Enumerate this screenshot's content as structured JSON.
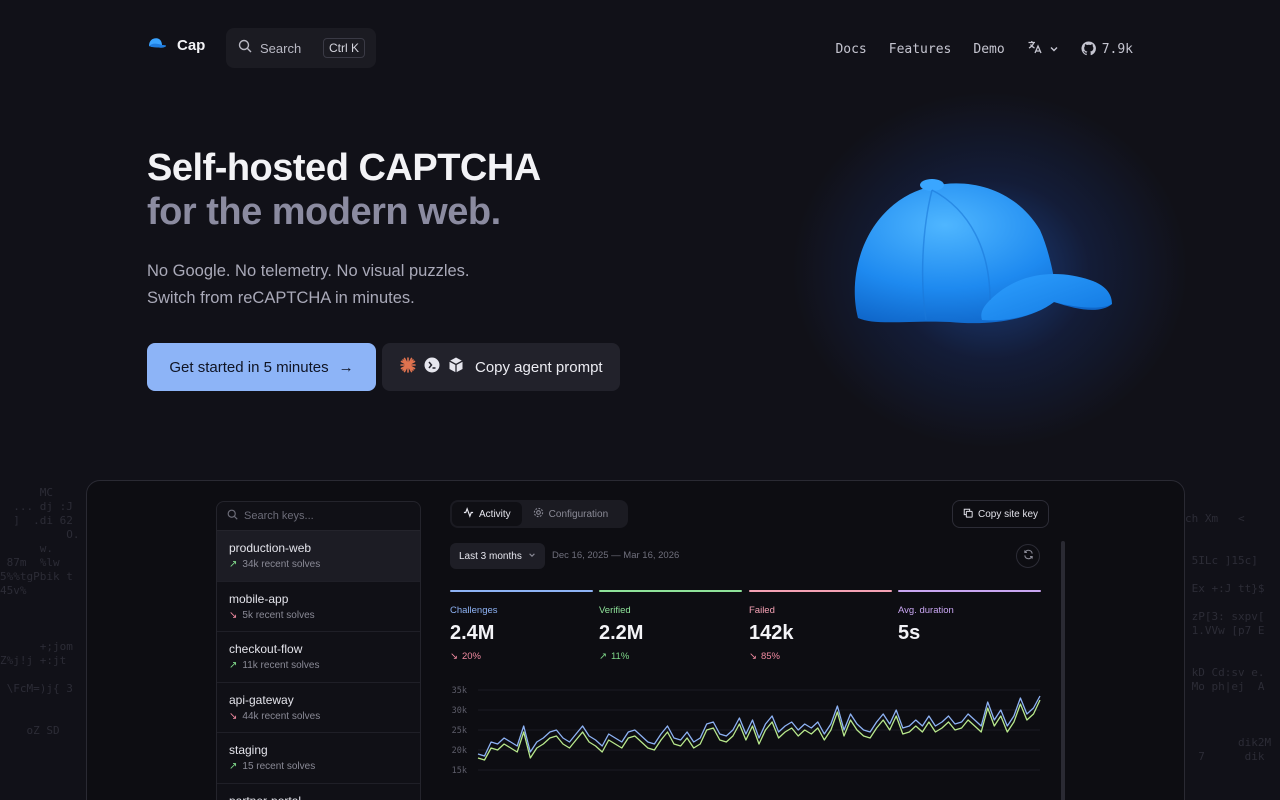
{
  "nav": {
    "brand": "Cap",
    "search_label": "Search",
    "search_shortcut": "Ctrl K",
    "links": [
      "Docs",
      "Features",
      "Demo"
    ],
    "github_stars": "7.9k"
  },
  "hero": {
    "title_line1": "Self-hosted CAPTCHA",
    "title_line2": "for the modern web.",
    "subtitle_line1": "No Google. No telemetry. No visual puzzles.",
    "subtitle_line2": "Switch from reCAPTCHA in minutes.",
    "cta_primary": "Get started in 5 minutes",
    "cta_primary_arrow": "→",
    "cta_secondary": "Copy agent prompt"
  },
  "dashboard": {
    "keys_search_placeholder": "Search keys...",
    "keys": [
      {
        "name": "production-web",
        "sub": "34k recent solves",
        "trend": "up"
      },
      {
        "name": "mobile-app",
        "sub": "5k recent solves",
        "trend": "down"
      },
      {
        "name": "checkout-flow",
        "sub": "11k recent solves",
        "trend": "up"
      },
      {
        "name": "api-gateway",
        "sub": "44k recent solves",
        "trend": "down"
      },
      {
        "name": "staging",
        "sub": "15 recent solves",
        "trend": "up"
      },
      {
        "name": "partner-portal",
        "sub": "",
        "trend": "up"
      }
    ],
    "tabs": [
      "Activity",
      "Configuration"
    ],
    "copy_site_key": "Copy site key",
    "range_label": "Last 3 months",
    "range_dates": "Dec 16, 2025 — Mar 16, 2026",
    "stats": [
      {
        "label": "Challenges",
        "value": "2.4M",
        "change": "20%",
        "dir": "down",
        "color": "#8eb3f5"
      },
      {
        "label": "Verified",
        "value": "2.2M",
        "change": "11%",
        "dir": "up",
        "color": "#8fe39a"
      },
      {
        "label": "Failed",
        "value": "142k",
        "change": "85%",
        "dir": "down",
        "color": "#f4a1b4"
      },
      {
        "label": "Avg. duration",
        "value": "5s",
        "change": "",
        "dir": "",
        "color": "#c9a6f2"
      }
    ]
  },
  "chart_data": {
    "type": "line",
    "ylim": [
      0,
      35000
    ],
    "y_ticks": [
      "35k",
      "30k",
      "25k",
      "20k",
      "15k"
    ],
    "series": [
      {
        "values": [
          19000,
          18500,
          22000,
          21500,
          23000,
          22000,
          21000,
          26000,
          19500,
          22000,
          23000,
          24500,
          25000,
          23000,
          22000,
          24000,
          26000,
          23500,
          22500,
          21000,
          24000,
          23000,
          22000,
          24500,
          25000,
          23500,
          22000,
          21500,
          24000,
          26000,
          23000,
          22500,
          24500,
          22000,
          23000,
          26500,
          27000,
          24000,
          23500,
          25000,
          28000,
          24000,
          27500,
          23000,
          26500,
          28500,
          24500,
          26000,
          27000,
          25000,
          26500,
          25500,
          27000,
          24000,
          26500,
          31000,
          25000,
          29000,
          26500,
          25000,
          24500,
          27000,
          29000,
          26500,
          30000,
          25500,
          26000,
          27500,
          26000,
          28500,
          26000,
          27000,
          28500,
          26500,
          27000,
          29000,
          27500,
          26000,
          32000,
          27500,
          30000,
          26000,
          28500,
          33000,
          29000,
          30500,
          33500
        ]
      },
      {
        "values": [
          18000,
          17500,
          20500,
          20000,
          21500,
          20500,
          19500,
          24500,
          18000,
          20500,
          21500,
          23000,
          23500,
          21500,
          20500,
          22500,
          24500,
          22000,
          21000,
          19500,
          22500,
          21500,
          20500,
          23000,
          23500,
          22000,
          20500,
          20000,
          22500,
          24500,
          21500,
          21000,
          23000,
          20500,
          21500,
          25000,
          25500,
          22500,
          22000,
          23500,
          26500,
          22500,
          26000,
          21500,
          25000,
          27000,
          23000,
          24500,
          25500,
          23500,
          25000,
          24000,
          25500,
          22500,
          25000,
          29500,
          23500,
          27500,
          25000,
          23500,
          23000,
          25500,
          27500,
          25000,
          28500,
          24000,
          24500,
          26000,
          24500,
          27000,
          24500,
          25500,
          27000,
          25000,
          25500,
          27500,
          26000,
          24500,
          30500,
          26000,
          28500,
          24500,
          27000,
          31500,
          27500,
          29000,
          32500
        ]
      }
    ]
  },
  "colors": {
    "accent": "#8db4f7",
    "background": "#111118",
    "series_challenges": "#8eb3f5",
    "series_verified": "#b8e88c"
  }
}
